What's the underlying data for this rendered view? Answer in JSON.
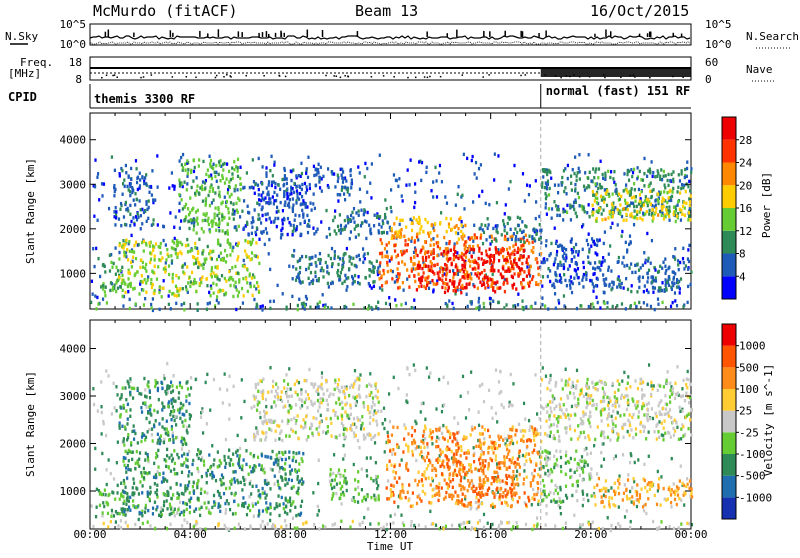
{
  "header": {
    "station": "McMurdo (fitACF)",
    "beam": "Beam 13",
    "date": "16/Oct/2015"
  },
  "sky_panel": {
    "left_label": "N.Sky",
    "left_ticks": [
      "10^5",
      "10^0"
    ],
    "right_label": "N.Search",
    "right_ticks": [
      "10^5",
      "10^0"
    ]
  },
  "freq_panel": {
    "left_label_line1": "Freq.",
    "left_label_line2": "[MHz]",
    "left_ticks": [
      "18",
      "8"
    ],
    "right_label": "Nave",
    "right_ticks": [
      "60",
      "0"
    ]
  },
  "cpid_panel": {
    "label": "CPID",
    "segments": [
      {
        "name": "themis 3300 RF",
        "start_hour": 0.0
      },
      {
        "name": "normal (fast) 151 RF",
        "start_hour": 18.0
      }
    ]
  },
  "chart_data": [
    {
      "type": "heatmap",
      "panel": "power",
      "xlabel": "Time UT",
      "ylabel": "Slant Range [km]",
      "xlim": [
        0,
        24
      ],
      "ylim": [
        200,
        4600
      ],
      "x_tick_labels": [
        "00:00",
        "04:00",
        "08:00",
        "12:00",
        "16:00",
        "20:00",
        "00:00"
      ],
      "y_tick_values": [
        1000,
        2000,
        3000,
        4000
      ],
      "y_tick_labels": [
        "1000",
        "2000",
        "3000",
        "4000"
      ],
      "colorbar": {
        "label": "Power [dB]",
        "tick_labels": [
          "4",
          "8",
          "12",
          "16",
          "20",
          "24",
          "28"
        ],
        "range": [
          0,
          30
        ],
        "colors": [
          "#0000ff",
          "#1e5bb8",
          "#2e8b57",
          "#66cc33",
          "#ffcc00",
          "#ff8800",
          "#ff3300",
          "#ee0000"
        ]
      },
      "regions": [
        {
          "t0": 0.4,
          "t1": 1.3,
          "r0": 500,
          "r1": 1300,
          "value": 10
        },
        {
          "t0": 1.0,
          "t1": 6.8,
          "r0": 500,
          "r1": 1800,
          "value": 14
        },
        {
          "t0": 0.9,
          "t1": 2.5,
          "r0": 2100,
          "r1": 3400,
          "value": 6
        },
        {
          "t0": 3.5,
          "t1": 6.0,
          "r0": 1900,
          "r1": 3600,
          "value": 12
        },
        {
          "t0": 6.0,
          "t1": 9.0,
          "r0": 1900,
          "r1": 3100,
          "value": 5
        },
        {
          "t0": 7.0,
          "t1": 10.5,
          "r0": 2800,
          "r1": 3400,
          "value": 6
        },
        {
          "t0": 9.5,
          "t1": 12.0,
          "r0": 1900,
          "r1": 2500,
          "value": 7
        },
        {
          "t0": 8.0,
          "t1": 11.5,
          "r0": 800,
          "r1": 1500,
          "value": 8
        },
        {
          "t0": 11.5,
          "t1": 18.0,
          "r0": 700,
          "r1": 1900,
          "value": 22
        },
        {
          "t0": 13.0,
          "t1": 17.5,
          "r0": 600,
          "r1": 1600,
          "value": 28
        },
        {
          "t0": 12.0,
          "t1": 15.0,
          "r0": 1800,
          "r1": 2300,
          "value": 18
        },
        {
          "t0": 15.5,
          "t1": 18.0,
          "r0": 1700,
          "r1": 2300,
          "value": 8
        },
        {
          "t0": 18.0,
          "t1": 24.0,
          "r0": 2300,
          "r1": 3400,
          "value": 9
        },
        {
          "t0": 20.0,
          "t1": 24.0,
          "r0": 2200,
          "r1": 2900,
          "value": 16
        },
        {
          "t0": 18.0,
          "t1": 20.5,
          "r0": 700,
          "r1": 1800,
          "value": 5
        },
        {
          "t0": 20.5,
          "t1": 24.0,
          "r0": 600,
          "r1": 1400,
          "value": 6
        }
      ]
    },
    {
      "type": "heatmap",
      "panel": "velocity",
      "xlabel": "Time UT",
      "ylabel": "Slant Range [km]",
      "xlim": [
        0,
        24
      ],
      "ylim": [
        200,
        4600
      ],
      "x_tick_labels": [
        "00:00",
        "04:00",
        "08:00",
        "12:00",
        "16:00",
        "20:00",
        "00:00"
      ],
      "y_tick_values": [
        1000,
        2000,
        3000,
        4000
      ],
      "y_tick_labels": [
        "1000",
        "2000",
        "3000",
        "4000"
      ],
      "colorbar": {
        "label": "Velocity [m s^-1]",
        "tick_labels": [
          "1000",
          "500",
          "100",
          "25",
          "-25",
          "-100",
          "-500",
          "-1000"
        ],
        "colors": [
          "#1530b0",
          "#1f6fb0",
          "#2e8b57",
          "#66cc33",
          "#c8c8c8",
          "#ffcc33",
          "#ff8c1a",
          "#ff5500",
          "#ee0000"
        ]
      },
      "regions": [
        {
          "t0": 0.3,
          "t1": 1.5,
          "r0": 450,
          "r1": 1200,
          "value": 2.5
        },
        {
          "t0": 1.2,
          "t1": 8.5,
          "r0": 500,
          "r1": 1900,
          "value": 2
        },
        {
          "t0": 1.0,
          "t1": 4.0,
          "r0": 2000,
          "r1": 3400,
          "value": 2
        },
        {
          "t0": 6.5,
          "t1": 11.5,
          "r0": 2100,
          "r1": 3400,
          "value": 4
        },
        {
          "t0": 9.5,
          "t1": 11.5,
          "r0": 800,
          "r1": 1500,
          "value": 3
        },
        {
          "t0": 11.8,
          "t1": 18.0,
          "r0": 700,
          "r1": 2400,
          "value": 6
        },
        {
          "t0": 14.0,
          "t1": 17.0,
          "r0": 900,
          "r1": 1700,
          "value": 6.5
        },
        {
          "t0": 18.0,
          "t1": 20.0,
          "r0": 800,
          "r1": 1900,
          "value": 3
        },
        {
          "t0": 20.0,
          "t1": 24.0,
          "r0": 700,
          "r1": 1300,
          "value": 5.5
        },
        {
          "t0": 18.0,
          "t1": 24.0,
          "r0": 2100,
          "r1": 3400,
          "value": 4
        }
      ]
    }
  ],
  "colors": {
    "frame": "#000000",
    "background": "#ffffff",
    "cpid_divider": "#aaaaaa"
  }
}
